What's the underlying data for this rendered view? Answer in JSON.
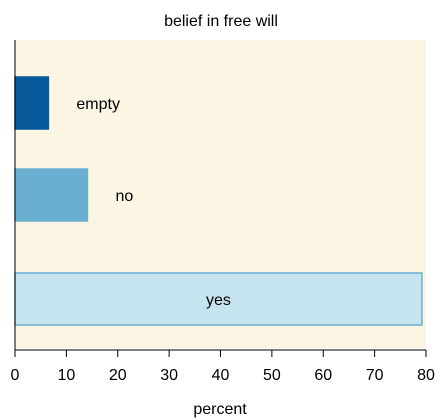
{
  "chart_data": {
    "type": "bar",
    "orientation": "horizontal",
    "title": "belief in free will",
    "xlabel": "percent",
    "ylabel": "",
    "xlim": [
      0,
      80
    ],
    "xticks": [
      0,
      10,
      20,
      30,
      40,
      50,
      60,
      70,
      80
    ],
    "grid": false,
    "legend": "none",
    "background_color": "#fbf5e3",
    "categories": [
      "empty",
      "no",
      "yes"
    ],
    "values": [
      6.5,
      14.1,
      79.2
    ],
    "bar_colors": [
      "#065a9c",
      "#6aaed1",
      "#c6e3f0"
    ],
    "bar_edge_colors": [
      "#065a9c",
      "#6aaed1",
      "#6aaed1"
    ]
  }
}
